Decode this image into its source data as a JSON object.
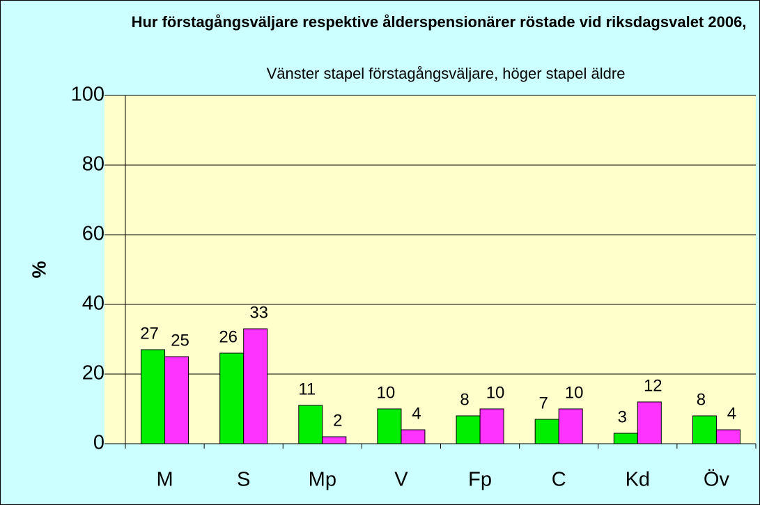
{
  "chart_data": {
    "type": "bar",
    "title": "Hur förstagångsväljare respektive ålderspensionärer röstade vid riksdagsvalet 2006,",
    "subtitle": "Vänster stapel förstagångsväljare, höger stapel äldre",
    "y_label": "%",
    "categories": [
      "M",
      "S",
      "Mp",
      "V",
      "Fp",
      "C",
      "Kd",
      "Öv"
    ],
    "series": [
      {
        "color": "#00ee00",
        "values": [
          27,
          26,
          11,
          10,
          8,
          7,
          3,
          8
        ]
      },
      {
        "color": "#ff33ff",
        "values": [
          25,
          33,
          2,
          4,
          10,
          10,
          12,
          4
        ]
      }
    ],
    "ylim": [
      0,
      100
    ],
    "yticks": [
      0,
      20,
      40,
      60,
      80,
      100
    ],
    "grid": true
  }
}
